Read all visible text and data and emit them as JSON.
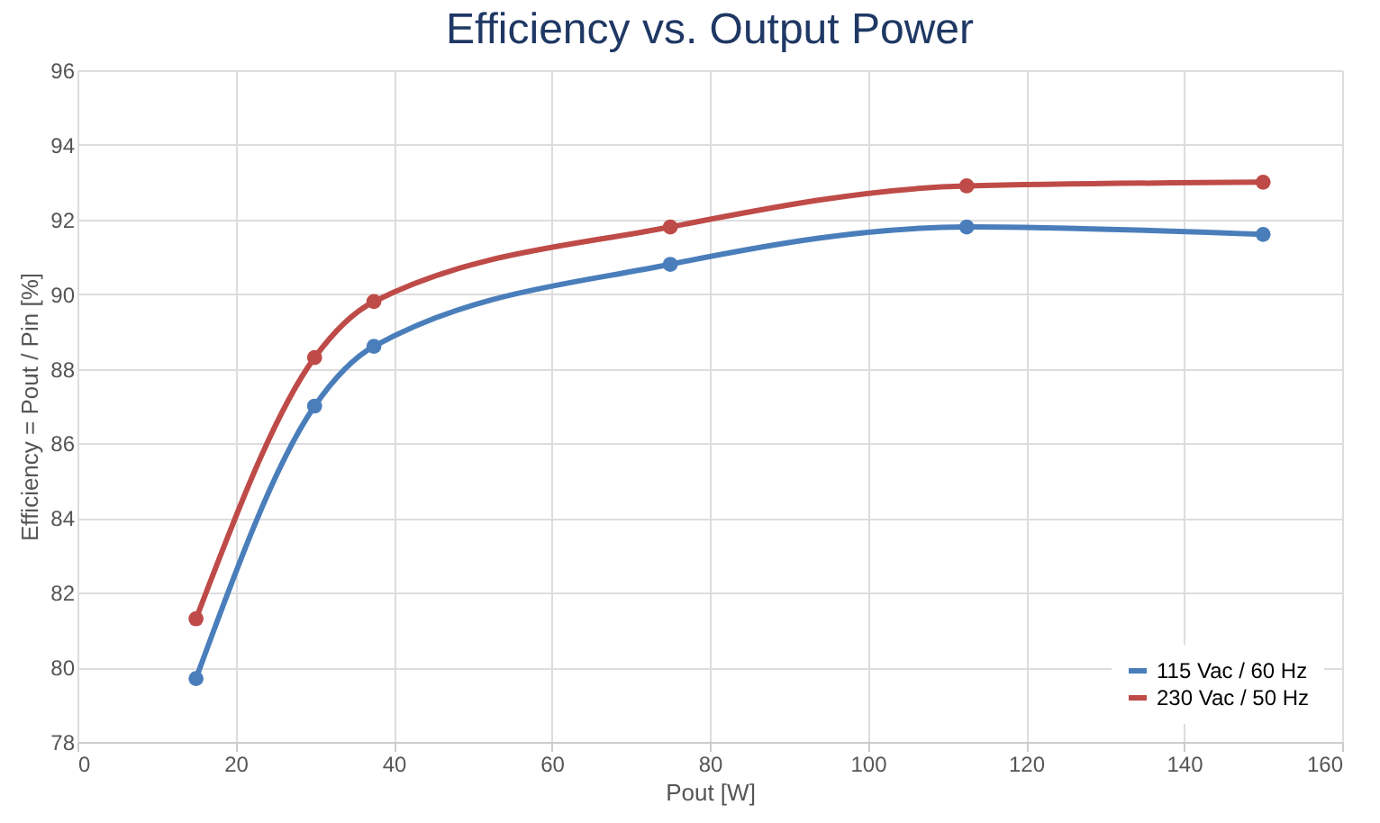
{
  "chart_data": {
    "type": "line",
    "title": "Efficiency vs. Output Power",
    "xlabel": "Pout [W]",
    "ylabel": "Efficiency = Pout / Pin [%]",
    "x": [
      15,
      30,
      37.5,
      75,
      112.5,
      150
    ],
    "series": [
      {
        "name": "115 Vac / 60 Hz",
        "color": "#4a7ebb",
        "values": [
          79.7,
          87.0,
          88.6,
          90.8,
          91.8,
          91.6
        ]
      },
      {
        "name": "230 Vac / 50 Hz",
        "color": "#be4b48",
        "values": [
          81.3,
          88.3,
          89.8,
          91.8,
          92.9,
          93.0
        ]
      }
    ],
    "xlim": [
      0,
      160
    ],
    "xticks": [
      0,
      20,
      40,
      60,
      80,
      100,
      120,
      140,
      160
    ],
    "ylim": [
      78,
      96
    ],
    "yticks": [
      78,
      80,
      82,
      84,
      86,
      88,
      90,
      92,
      94,
      96
    ],
    "grid": true,
    "legend": "bottom right",
    "marker": "circle",
    "line_style": "solid"
  }
}
